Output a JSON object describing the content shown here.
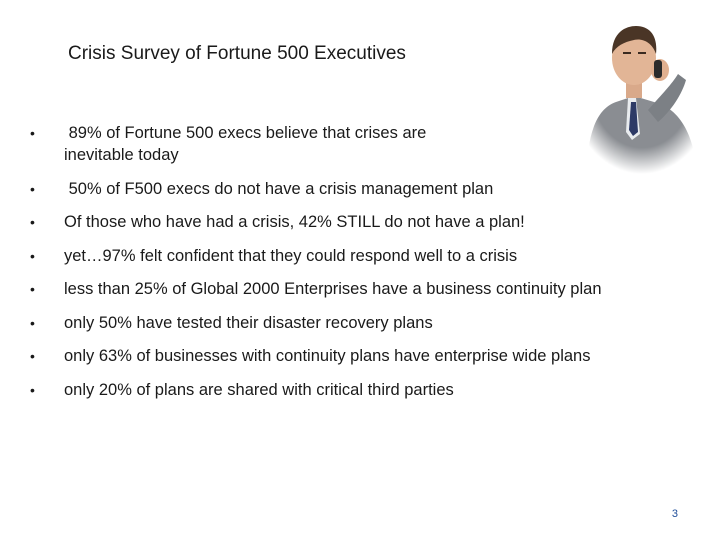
{
  "slide": {
    "title": "Crisis Survey of Fortune 500 Executives",
    "page_number": "3"
  },
  "bullets": [
    {
      "text": " 89% of Fortune 500 execs believe that crises are inevitable today"
    },
    {
      "text": " 50% of F500 execs do not have a crisis management plan"
    },
    {
      "text": "Of those who have had a crisis, 42% STILL do not have a plan!"
    },
    {
      "text": "yet…97% felt confident that they could respond well to a crisis"
    },
    {
      "text": "less than 25% of Global 2000 Enterprises have a business continuity plan"
    },
    {
      "text": "only 50% have tested their disaster recovery plans"
    },
    {
      "text": "only 63% of businesses with continuity plans have enterprise wide plans"
    },
    {
      "text": "only 20% of plans are shared with critical third parties"
    }
  ],
  "bullet_glyph": "•"
}
